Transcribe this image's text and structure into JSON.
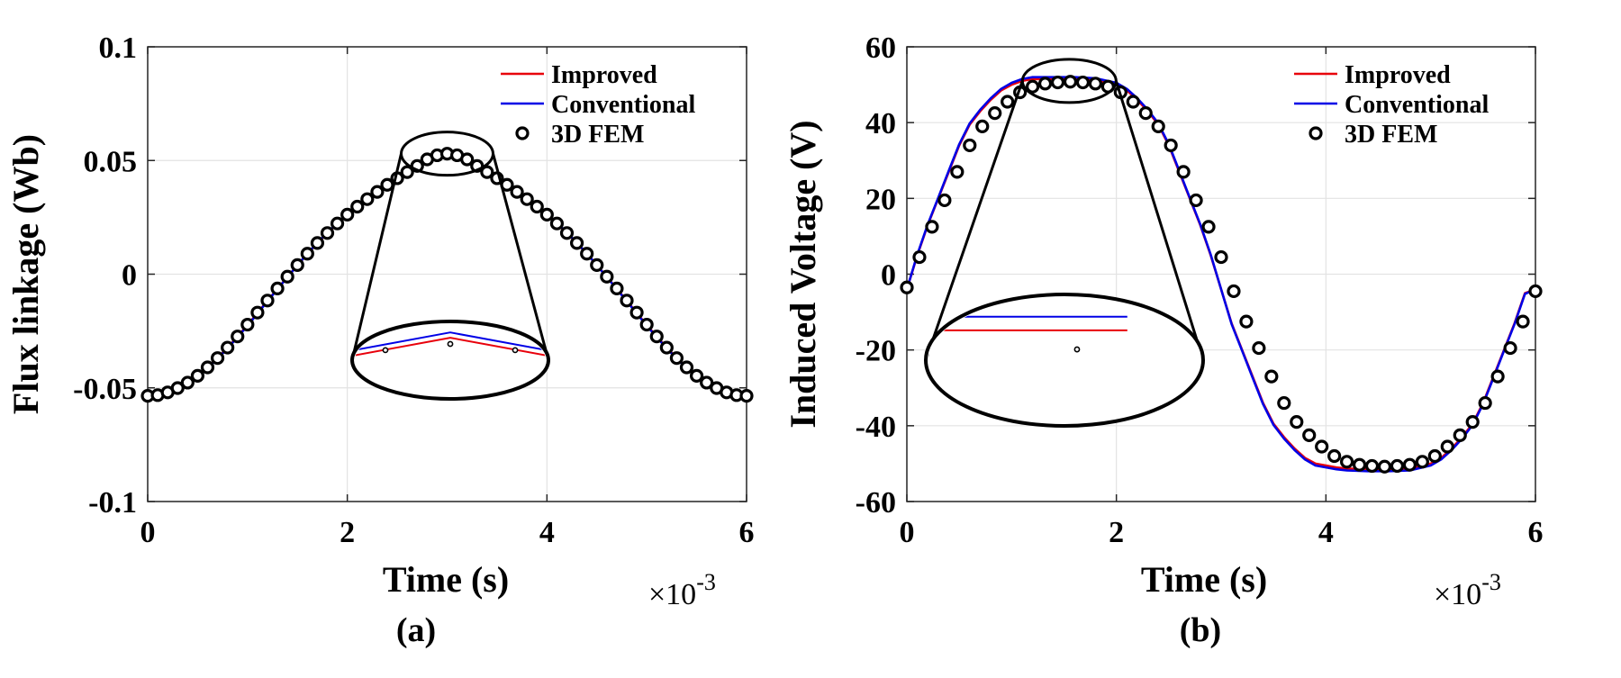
{
  "chart_data": [
    {
      "type": "line",
      "panel_label": "(a)",
      "xlabel": "Time (s)",
      "ylabel": "Flux linkage (Wb)",
      "x_multiplier_base": "×10",
      "x_multiplier_exp": "-3",
      "xlim": [
        0,
        6
      ],
      "ylim": [
        -0.1,
        0.1
      ],
      "xticks": [
        0,
        2,
        4,
        6
      ],
      "xtick_labels": [
        "0",
        "2",
        "4",
        "6"
      ],
      "yticks": [
        -0.1,
        -0.05,
        0,
        0.05,
        0.1
      ],
      "ytick_labels": [
        "-0.1",
        "-0.05",
        "0",
        "0.05",
        "0.1"
      ],
      "grid": true,
      "legend_position": "top-right",
      "legend": [
        "Improved",
        "Conventional",
        "3D FEM"
      ],
      "series": [
        {
          "name": "Improved",
          "color": "#e8000b",
          "style": "line",
          "x": [
            0,
            0.2,
            0.4,
            0.6,
            0.8,
            1.0,
            1.2,
            1.4,
            1.6,
            1.8,
            2.0,
            2.2,
            2.4,
            2.6,
            2.8,
            3.0,
            3.2,
            3.4,
            3.6,
            3.8,
            4.0,
            4.2,
            4.4,
            4.6,
            4.8,
            5.0,
            5.2,
            5.4,
            5.6,
            5.8,
            6.0
          ],
          "y": [
            -0.0537,
            -0.0522,
            -0.0479,
            -0.0411,
            -0.0324,
            -0.0224,
            -0.0117,
            -0.0012,
            0.009,
            0.0182,
            0.0262,
            0.033,
            0.0393,
            0.045,
            0.051,
            0.0537,
            0.051,
            0.045,
            0.0393,
            0.033,
            0.0262,
            0.0182,
            0.009,
            -0.0012,
            -0.0117,
            -0.0224,
            -0.0324,
            -0.0411,
            -0.0479,
            -0.0522,
            -0.0537
          ]
        },
        {
          "name": "Conventional",
          "color": "#0000e6",
          "style": "line",
          "x": [
            0,
            0.2,
            0.4,
            0.6,
            0.8,
            1.0,
            1.2,
            1.4,
            1.6,
            1.8,
            2.0,
            2.2,
            2.4,
            2.6,
            2.8,
            3.0,
            3.2,
            3.4,
            3.6,
            3.8,
            4.0,
            4.2,
            4.4,
            4.6,
            4.8,
            5.0,
            5.2,
            5.4,
            5.6,
            5.8,
            6.0
          ],
          "y": [
            -0.054,
            -0.0525,
            -0.0482,
            -0.0414,
            -0.0327,
            -0.0227,
            -0.0119,
            -0.0013,
            0.0091,
            0.0184,
            0.0265,
            0.0334,
            0.0397,
            0.0455,
            0.0516,
            0.0543,
            0.0516,
            0.0455,
            0.0397,
            0.0334,
            0.0265,
            0.0184,
            0.0091,
            -0.0013,
            -0.0119,
            -0.0227,
            -0.0327,
            -0.0414,
            -0.0482,
            -0.0525,
            -0.054
          ]
        },
        {
          "name": "3D FEM",
          "color": "#000000",
          "style": "markers",
          "x": [
            0,
            0.1,
            0.2,
            0.3,
            0.4,
            0.5,
            0.6,
            0.7,
            0.8,
            0.9,
            1.0,
            1.1,
            1.2,
            1.3,
            1.4,
            1.5,
            1.6,
            1.7,
            1.8,
            1.9,
            2.0,
            2.1,
            2.2,
            2.3,
            2.4,
            2.5,
            2.6,
            2.7,
            2.8,
            2.9,
            3.0,
            3.1,
            3.2,
            3.3,
            3.4,
            3.5,
            3.6,
            3.7,
            3.8,
            3.9,
            4.0,
            4.1,
            4.2,
            4.3,
            4.4,
            4.5,
            4.6,
            4.7,
            4.8,
            4.9,
            5.0,
            5.1,
            5.2,
            5.3,
            5.4,
            5.5,
            5.6,
            5.7,
            5.8,
            5.9,
            6.0
          ],
          "y": [
            -0.0535,
            -0.0532,
            -0.052,
            -0.0501,
            -0.0477,
            -0.0447,
            -0.041,
            -0.0369,
            -0.0323,
            -0.0274,
            -0.0222,
            -0.0169,
            -0.0116,
            -0.0063,
            -0.0011,
            0.004,
            0.009,
            0.0137,
            0.0181,
            0.0223,
            0.0262,
            0.0297,
            0.033,
            0.0362,
            0.0393,
            0.0422,
            0.0449,
            0.0476,
            0.0505,
            0.0523,
            0.053,
            0.0523,
            0.0505,
            0.0476,
            0.0449,
            0.0422,
            0.0393,
            0.0362,
            0.033,
            0.0297,
            0.0262,
            0.0223,
            0.0181,
            0.0137,
            0.009,
            0.004,
            -0.0011,
            -0.0063,
            -0.0116,
            -0.0169,
            -0.0222,
            -0.0274,
            -0.0323,
            -0.0369,
            -0.041,
            -0.0447,
            -0.0477,
            -0.0501,
            -0.052,
            -0.0532,
            -0.0535
          ]
        }
      ],
      "zoom_center_x": 3.0,
      "zoom_center_y": 0.053
    },
    {
      "type": "line",
      "panel_label": "(b)",
      "xlabel": "Time (s)",
      "ylabel": "Induced Voltage (V)",
      "x_multiplier_base": "×10",
      "x_multiplier_exp": "-3",
      "xlim": [
        0,
        6
      ],
      "ylim": [
        -60,
        60
      ],
      "xticks": [
        0,
        2,
        4,
        6
      ],
      "xtick_labels": [
        "0",
        "2",
        "4",
        "6"
      ],
      "yticks": [
        -60,
        -40,
        -20,
        0,
        20,
        40,
        60
      ],
      "ytick_labels": [
        "-60",
        "-40",
        "-20",
        "0",
        "20",
        "40",
        "60"
      ],
      "grid": true,
      "legend_position": "top-right",
      "legend": [
        "Improved",
        "Conventional",
        "3D FEM"
      ],
      "series": [
        {
          "name": "Improved",
          "color": "#e8000b",
          "style": "line",
          "x": [
            0,
            0.1,
            0.2,
            0.3,
            0.4,
            0.5,
            0.6,
            0.7,
            0.8,
            0.9,
            1.0,
            1.1,
            1.2,
            1.4,
            1.6,
            1.8,
            2.0,
            2.1,
            2.2,
            2.3,
            2.4,
            2.5,
            2.6,
            2.7,
            2.8,
            2.9,
            3.0,
            3.1,
            3.2,
            3.3,
            3.4,
            3.5,
            3.6,
            3.7,
            3.8,
            3.9,
            4.0,
            4.1,
            4.2,
            4.4,
            4.6,
            4.8,
            5.0,
            5.1,
            5.2,
            5.3,
            5.4,
            5.5,
            5.6,
            5.7,
            5.8,
            5.9,
            6.0
          ],
          "y": [
            -4,
            5,
            13,
            20,
            27,
            34,
            39.5,
            43,
            46,
            48.5,
            50,
            51,
            51.5,
            51.5,
            51.5,
            51.2,
            50,
            48.5,
            46,
            43,
            39.5,
            34,
            27,
            20,
            13,
            5,
            -4,
            -13,
            -20,
            -27,
            -34,
            -39.5,
            -43,
            -46,
            -48.5,
            -50,
            -50.5,
            -51,
            -51.3,
            -51.5,
            -51.5,
            -51.3,
            -50,
            -48.5,
            -46,
            -43,
            -39.5,
            -34,
            -27,
            -20,
            -13,
            -5,
            -4
          ]
        },
        {
          "name": "Conventional",
          "color": "#0000e6",
          "style": "line",
          "x": [
            0,
            0.1,
            0.2,
            0.3,
            0.4,
            0.5,
            0.6,
            0.7,
            0.8,
            0.9,
            1.0,
            1.1,
            1.2,
            1.4,
            1.6,
            1.8,
            2.0,
            2.1,
            2.2,
            2.3,
            2.4,
            2.5,
            2.6,
            2.7,
            2.8,
            2.9,
            3.0,
            3.1,
            3.2,
            3.3,
            3.4,
            3.5,
            3.6,
            3.7,
            3.8,
            3.9,
            4.0,
            4.1,
            4.2,
            4.4,
            4.6,
            4.8,
            5.0,
            5.1,
            5.2,
            5.3,
            5.4,
            5.5,
            5.6,
            5.7,
            5.8,
            5.9,
            6.0
          ],
          "y": [
            -4,
            5.2,
            13.2,
            20.2,
            27.3,
            34.3,
            39.8,
            43.4,
            46.4,
            48.9,
            50.5,
            51.5,
            52,
            52,
            52,
            51.7,
            50.5,
            48.9,
            46.4,
            43.4,
            39.8,
            34.3,
            27.3,
            20.2,
            13.2,
            5.2,
            -4,
            -13.2,
            -20.2,
            -27.3,
            -34.3,
            -39.8,
            -43.4,
            -46.4,
            -48.9,
            -50.5,
            -51,
            -51.5,
            -51.8,
            -52,
            -52,
            -51.8,
            -50.5,
            -48.9,
            -46.4,
            -43.4,
            -39.8,
            -34.3,
            -27.3,
            -20.2,
            -13.2,
            -5.2,
            -4
          ]
        },
        {
          "name": "3D FEM",
          "color": "#000000",
          "style": "markers",
          "x": [
            0,
            0.12,
            0.24,
            0.36,
            0.48,
            0.6,
            0.72,
            0.84,
            0.96,
            1.08,
            1.2,
            1.32,
            1.44,
            1.56,
            1.68,
            1.8,
            1.92,
            2.04,
            2.16,
            2.28,
            2.4,
            2.52,
            2.64,
            2.76,
            2.88,
            3.0,
            3.12,
            3.24,
            3.36,
            3.48,
            3.6,
            3.72,
            3.84,
            3.96,
            4.08,
            4.2,
            4.32,
            4.44,
            4.56,
            4.68,
            4.8,
            4.92,
            5.04,
            5.16,
            5.28,
            5.4,
            5.52,
            5.64,
            5.76,
            5.88,
            6.0
          ],
          "y": [
            -3.5,
            4.5,
            12.5,
            19.5,
            27,
            34,
            39,
            42.5,
            45.5,
            48,
            49.5,
            50.3,
            50.6,
            50.8,
            50.6,
            50.3,
            49.5,
            48,
            45.5,
            42.5,
            39,
            34,
            27,
            19.5,
            12.5,
            4.5,
            -4.5,
            -12.5,
            -19.5,
            -27,
            -34,
            -39,
            -42.5,
            -45.5,
            -48,
            -49.5,
            -50.3,
            -50.6,
            -50.8,
            -50.6,
            -50.3,
            -49.5,
            -48,
            -45.5,
            -42.5,
            -39,
            -34,
            -27,
            -19.5,
            -12.5,
            -4.5
          ]
        }
      ],
      "zoom_center_x": 1.55,
      "zoom_center_y": 51
    }
  ]
}
